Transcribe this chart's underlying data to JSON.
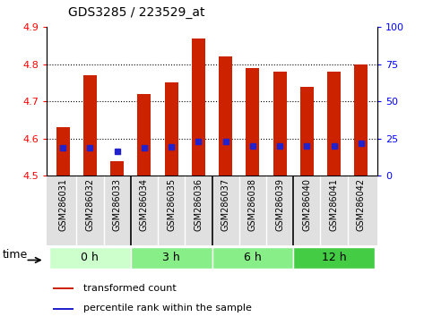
{
  "title": "GDS3285 / 223529_at",
  "samples": [
    "GSM286031",
    "GSM286032",
    "GSM286033",
    "GSM286034",
    "GSM286035",
    "GSM286036",
    "GSM286037",
    "GSM286038",
    "GSM286039",
    "GSM286040",
    "GSM286041",
    "GSM286042"
  ],
  "transformed_count": [
    4.63,
    4.77,
    4.54,
    4.72,
    4.75,
    4.87,
    4.82,
    4.79,
    4.78,
    4.74,
    4.78,
    4.8
  ],
  "percentile_rank_scaled": [
    4.575,
    4.575,
    4.565,
    4.576,
    4.577,
    4.592,
    4.592,
    4.58,
    4.58,
    4.581,
    4.581,
    4.587
  ],
  "ylim_left": [
    4.5,
    4.9
  ],
  "ylim_right": [
    0,
    100
  ],
  "yticks_left": [
    4.5,
    4.6,
    4.7,
    4.8,
    4.9
  ],
  "yticks_right": [
    0,
    25,
    50,
    75,
    100
  ],
  "bar_color": "#cc2200",
  "percentile_color": "#2222cc",
  "bar_bottom": 4.5,
  "bar_width": 0.5,
  "group_labels": [
    "0 h",
    "3 h",
    "6 h",
    "12 h"
  ],
  "group_starts": [
    0,
    3,
    6,
    9
  ],
  "group_ends": [
    3,
    6,
    9,
    12
  ],
  "group_colors": [
    "#ccffcc",
    "#88ee88",
    "#88ee88",
    "#44cc44"
  ],
  "time_label": "time",
  "legend_bar_label": "transformed count",
  "legend_pct_label": "percentile rank within the sample",
  "grid_dotted_at": [
    4.6,
    4.7,
    4.8
  ],
  "title_fontsize": 10,
  "tick_fontsize": 8,
  "label_fontsize": 7,
  "time_label_fontsize": 9,
  "legend_fontsize": 8
}
